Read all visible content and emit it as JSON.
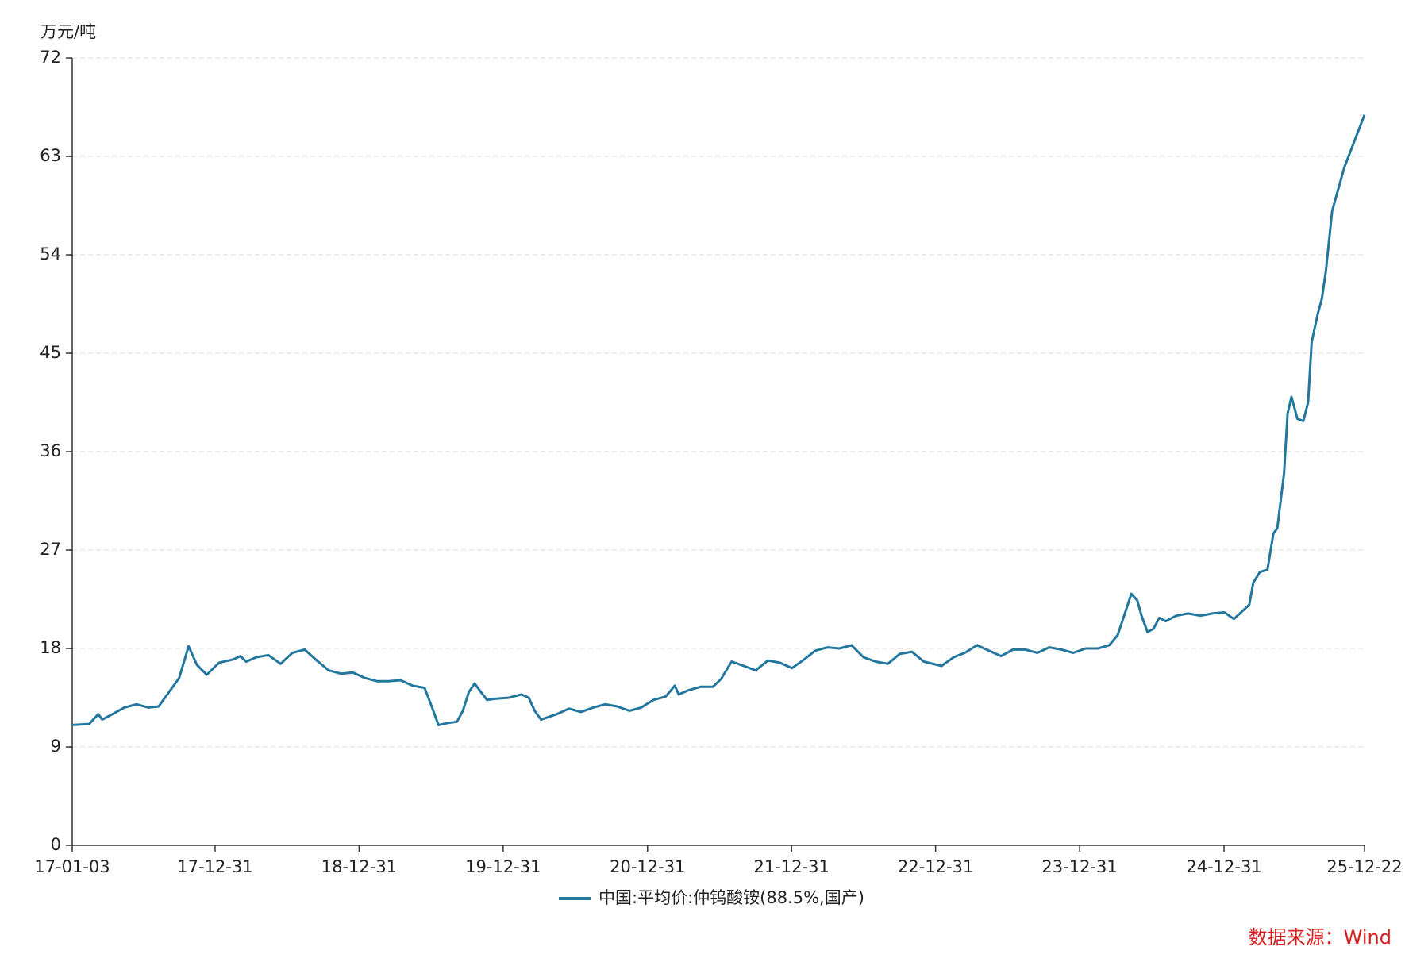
{
  "chart_data": {
    "type": "line",
    "y_label": "万元/吨",
    "source": "数据来源：Wind",
    "ylim": [
      0,
      72
    ],
    "yticks": [
      0,
      9,
      18,
      27,
      36,
      45,
      54,
      63,
      72
    ],
    "xlim": [
      "17-01-03",
      "25-12-22"
    ],
    "xticks": [
      "17-01-03",
      "17-12-31",
      "18-12-31",
      "19-12-31",
      "20-12-31",
      "21-12-31",
      "22-12-31",
      "23-12-31",
      "24-12-31",
      "25-12-22"
    ],
    "grid": true,
    "x": [
      "17-01-03",
      "17-02-15",
      "17-03-10",
      "17-03-20",
      "17-04-15",
      "17-05-15",
      "17-06-15",
      "17-07-15",
      "17-08-10",
      "17-09-05",
      "17-10-01",
      "17-10-25",
      "17-11-15",
      "17-12-10",
      "18-01-10",
      "18-02-15",
      "18-03-05",
      "18-03-20",
      "18-04-15",
      "18-05-15",
      "18-06-15",
      "18-07-15",
      "18-08-15",
      "18-09-15",
      "18-10-15",
      "18-11-15",
      "18-12-15",
      "19-01-15",
      "19-02-15",
      "19-03-15",
      "19-04-15",
      "19-05-15",
      "19-06-15",
      "19-07-05",
      "19-07-20",
      "19-08-15",
      "19-09-05",
      "19-09-20",
      "19-10-05",
      "19-10-20",
      "19-11-05",
      "19-11-20",
      "19-12-10",
      "20-01-15",
      "20-02-15",
      "20-03-05",
      "20-03-20",
      "20-04-05",
      "20-05-15",
      "20-06-15",
      "20-07-15",
      "20-08-15",
      "20-09-15",
      "20-10-15",
      "20-11-15",
      "20-12-15",
      "21-01-15",
      "21-02-15",
      "21-03-10",
      "21-03-20",
      "21-04-15",
      "21-05-15",
      "21-06-15",
      "21-07-05",
      "21-08-01",
      "21-09-01",
      "21-10-01",
      "21-11-01",
      "21-12-01",
      "22-01-01",
      "22-02-01",
      "22-03-01",
      "22-04-01",
      "22-05-01",
      "22-06-01",
      "22-07-01",
      "22-08-01",
      "22-09-01",
      "22-10-01",
      "22-11-01",
      "22-12-01",
      "23-01-15",
      "23-02-15",
      "23-03-15",
      "23-04-15",
      "23-05-15",
      "23-06-15",
      "23-07-15",
      "23-08-15",
      "23-09-15",
      "23-10-15",
      "23-11-15",
      "23-12-15",
      "24-01-15",
      "24-02-15",
      "24-03-15",
      "24-04-05",
      "24-04-20",
      "24-05-10",
      "24-05-25",
      "24-06-05",
      "24-06-20",
      "24-07-05",
      "24-07-20",
      "24-08-05",
      "24-09-01",
      "24-10-01",
      "24-11-01",
      "24-12-01",
      "25-01-01",
      "25-01-25",
      "25-02-15",
      "25-03-05",
      "25-03-15",
      "25-04-01",
      "25-04-20",
      "25-05-05",
      "25-05-15",
      "25-06-01",
      "25-06-10",
      "25-06-20",
      "25-07-05",
      "25-07-20",
      "25-08-01",
      "25-08-10",
      "25-08-25",
      "25-09-05",
      "25-09-15",
      "25-10-01",
      "25-11-01",
      "25-12-22"
    ],
    "series": [
      {
        "name": "中国:平均价:仲钨酸铵(88.5%,国产)",
        "color": "#23769d",
        "values": [
          11.0,
          11.1,
          12.0,
          11.5,
          12.0,
          12.6,
          12.9,
          12.6,
          12.7,
          14.0,
          15.3,
          18.2,
          16.5,
          15.6,
          16.7,
          17.0,
          17.3,
          16.8,
          17.2,
          17.4,
          16.6,
          17.6,
          17.9,
          16.9,
          16.0,
          15.7,
          15.8,
          15.3,
          15.0,
          15.0,
          15.1,
          14.6,
          14.4,
          12.5,
          11.0,
          11.2,
          11.3,
          12.3,
          14.0,
          14.8,
          14.0,
          13.3,
          13.4,
          13.5,
          13.8,
          13.5,
          12.3,
          11.5,
          12.0,
          12.5,
          12.2,
          12.6,
          12.9,
          12.7,
          12.3,
          12.6,
          13.3,
          13.6,
          14.6,
          13.8,
          14.2,
          14.5,
          14.5,
          15.2,
          16.8,
          16.4,
          16.0,
          16.9,
          16.7,
          16.2,
          17.0,
          17.8,
          18.1,
          18.0,
          18.3,
          17.2,
          16.8,
          16.6,
          17.5,
          17.7,
          16.8,
          16.4,
          17.2,
          17.6,
          18.3,
          17.8,
          17.3,
          17.9,
          17.9,
          17.6,
          18.1,
          17.9,
          17.6,
          18.0,
          18.0,
          18.3,
          19.2,
          20.8,
          23.0,
          22.4,
          21.0,
          19.5,
          19.8,
          20.8,
          20.5,
          21.0,
          21.2,
          21.0,
          21.2,
          21.3,
          20.7,
          21.4,
          22.0,
          24.0,
          25.0,
          25.2,
          28.5,
          29.0,
          34.0,
          39.5,
          41.0,
          39.0,
          38.8,
          40.5,
          46.0,
          48.5,
          50.0,
          52.5,
          58.0,
          62.0,
          66.8
        ]
      }
    ]
  }
}
